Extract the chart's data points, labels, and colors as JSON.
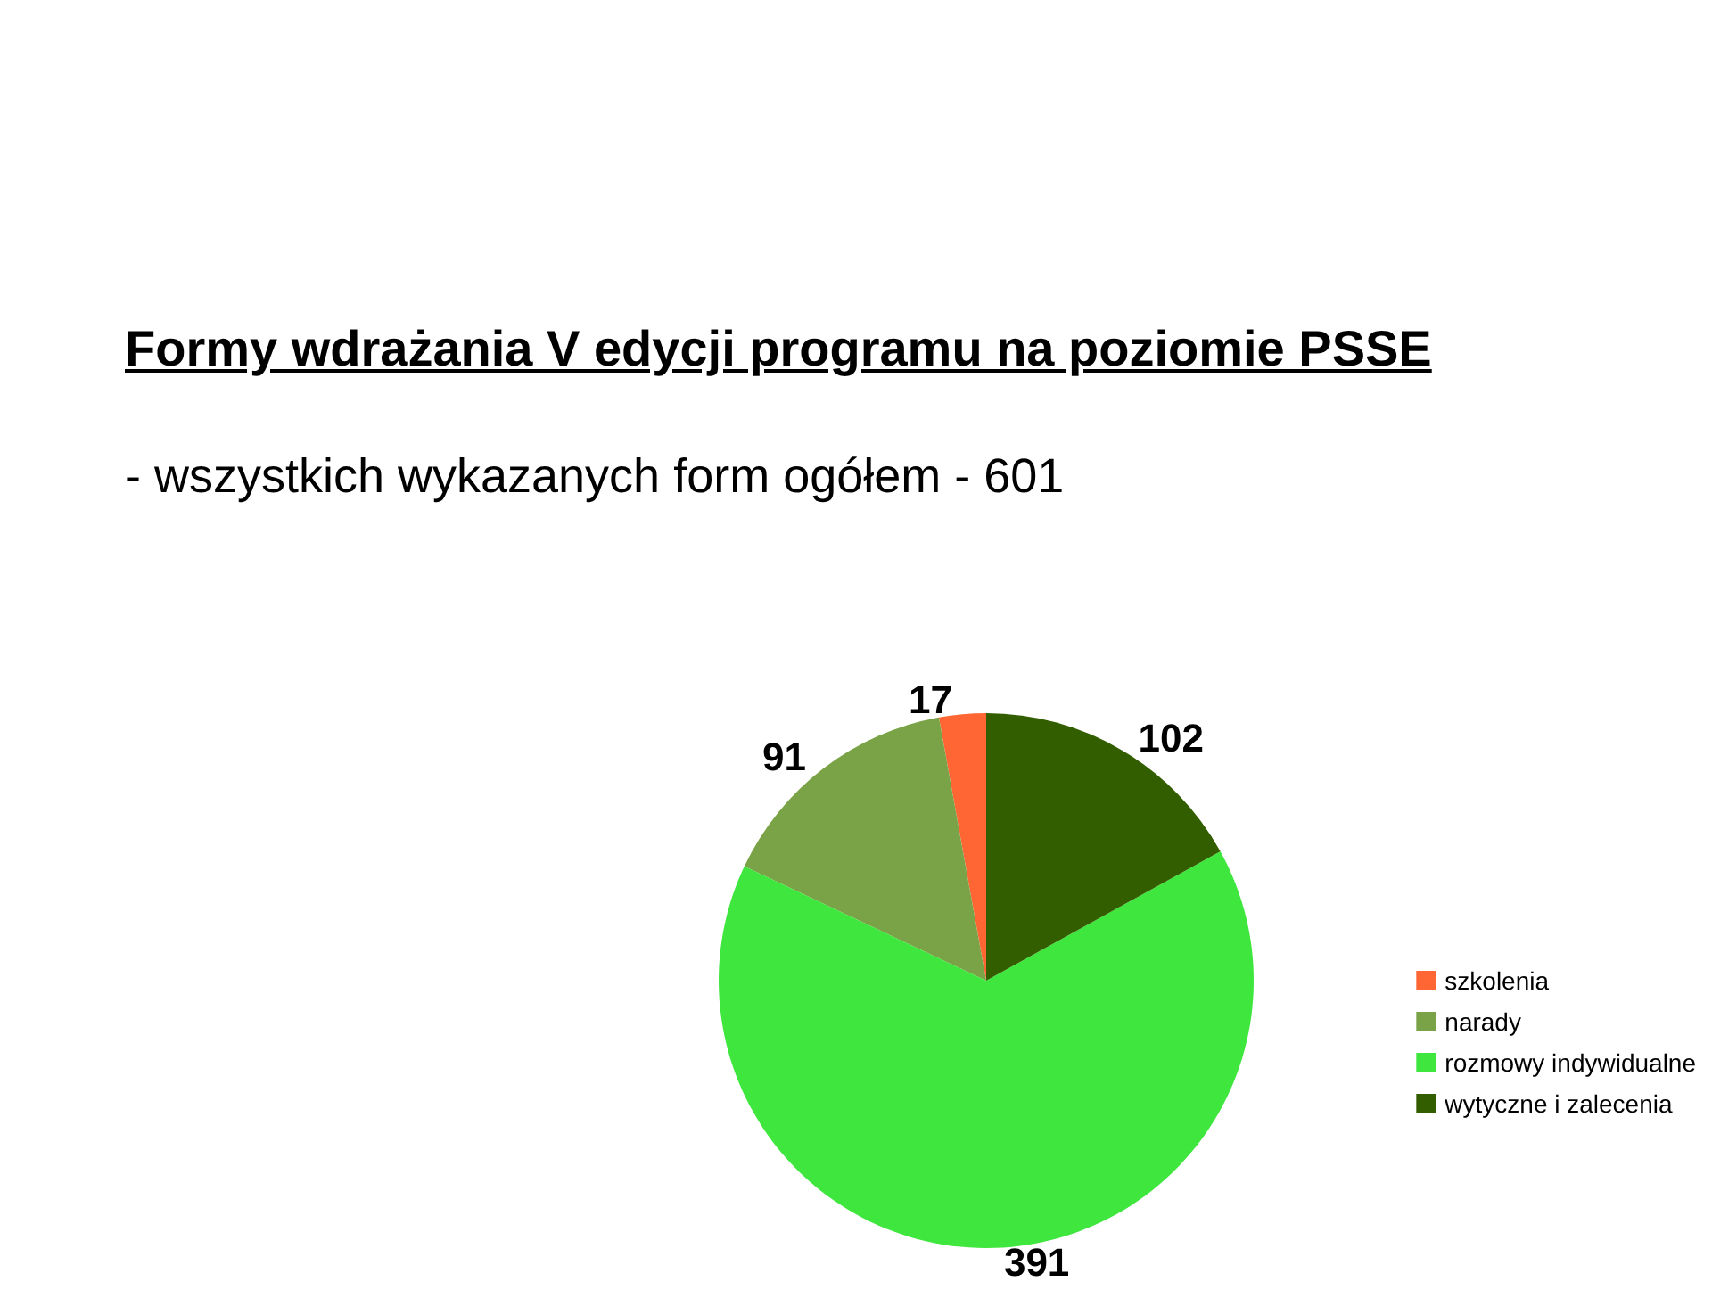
{
  "chart_data": {
    "type": "pie",
    "title": "Formy wdrażania V edycji programu na poziomie PSSE",
    "subtitle": "- wszystkich wykazanych form ogółem - 601",
    "categories": [
      "szkolenia",
      "narady",
      "rozmowy indywidualne",
      "wytyczne i zalecenia"
    ],
    "values": [
      17,
      91,
      391,
      102
    ],
    "colors": [
      "#ff6633",
      "#7aa347",
      "#3ee63e",
      "#335e00"
    ],
    "data_labels": true,
    "legend": "right"
  }
}
